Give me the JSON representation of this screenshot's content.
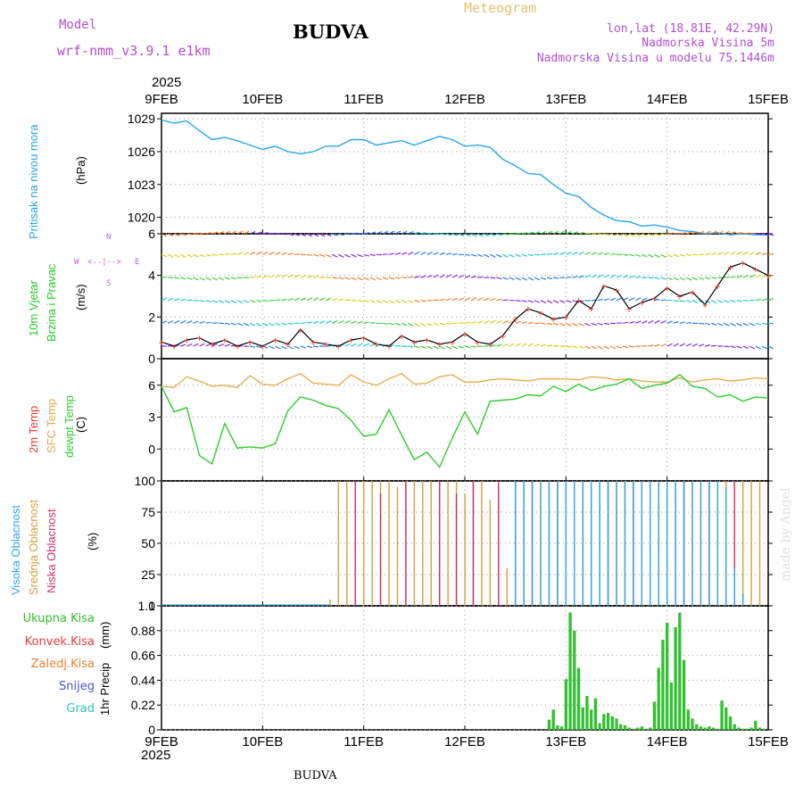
{
  "header": {
    "model_label": "Model",
    "model_name": "wrf-nmm_v3.9.1 e1km",
    "title": "BUDVA",
    "meteogram_label": "Meteogram",
    "lonlat": "lon,lat (18.81E, 42.29N)",
    "elevation": "Nadmorska Visina 5m",
    "model_elevation": "Nadmorska Visina u modelu 75.1446m",
    "footer": "BUDVA",
    "watermark": "made by Angel"
  },
  "colors": {
    "pressure": "#2aa7e8",
    "wind_axis_label": "#22cc22",
    "wind_series": "#e83a3a",
    "temp_2m": "#e83a3a",
    "temp_sfc": "#e8a84a",
    "dewpt": "#30cc30",
    "cloud_high": "#30a8e8",
    "cloud_mid": "#d4a040",
    "cloud_low": "#d03070",
    "precip_total": "#30c030",
    "precip_conv": "#e83a3a",
    "precip_frozen": "#f08030",
    "snow": "#5050e0",
    "graupel": "#30c0c0",
    "compass": "#c060e0"
  },
  "time_axis": {
    "year": "2025",
    "labels": [
      "9FEB",
      "10FEB",
      "11FEB",
      "12FEB",
      "13FEB",
      "14FEB",
      "15FEB"
    ]
  },
  "panels": {
    "pressure": {
      "axis_label_blue": "Pritisak na nivou mora",
      "unit": "(hPa)"
    },
    "wind": {
      "axis_label_1": "10m Vjetar",
      "axis_label_2": "Brzina i Pravac",
      "unit": "(m/s)",
      "compass": {
        "west": "W",
        "east": "E",
        "north": "N",
        "south": "S"
      }
    },
    "temp": {
      "label_2m": "2m Temp",
      "label_sfc": "SFC Temp",
      "label_dewpt": "dewpt Temp",
      "unit": "(C)"
    },
    "cloud": {
      "label_high": "Visoka Oblacnost",
      "label_mid": "Srednja Oblacnost",
      "label_low": "Niska Oblacnost",
      "unit": "(%)"
    },
    "precip": {
      "legend": [
        "Ukupna Kisa",
        "Konvek.Kisa",
        "Zaledj.Kisa",
        "Snijeg",
        "Grad"
      ],
      "axis_label": "1hr Precip",
      "unit": "(mm)"
    }
  },
  "chart_data": [
    {
      "type": "line",
      "title": "",
      "ylabel": "Pritisak na nivou mora (hPa)",
      "ylim": [
        1018.5,
        1029.5
      ],
      "yticks": [
        1020,
        1023,
        1026,
        1029
      ],
      "xlim": [
        "2025-02-09 00",
        "2025-02-15 00"
      ],
      "grid": true,
      "series": [
        {
          "name": "Pritisak na nivou mora",
          "x_hours": [
            0,
            3,
            6,
            9,
            12,
            15,
            18,
            21,
            24,
            27,
            30,
            33,
            36,
            39,
            42,
            45,
            48,
            51,
            54,
            57,
            60,
            63,
            66,
            69,
            72,
            75,
            78,
            81,
            84,
            87,
            90,
            93,
            96,
            99,
            102,
            105,
            108,
            111,
            114,
            117,
            120,
            123,
            126,
            129,
            132,
            135,
            138,
            141,
            144
          ],
          "values": [
            1028.9,
            1028.6,
            1028.8,
            1027.9,
            1027.1,
            1027.3,
            1027.0,
            1026.6,
            1026.2,
            1026.5,
            1026.0,
            1025.8,
            1026.0,
            1026.5,
            1026.5,
            1027.1,
            1027.1,
            1026.6,
            1026.8,
            1027.0,
            1026.6,
            1027.0,
            1027.4,
            1027.1,
            1026.5,
            1026.6,
            1026.4,
            1025.3,
            1024.7,
            1024.0,
            1023.9,
            1023.0,
            1022.2,
            1021.9,
            1020.9,
            1020.2,
            1019.7,
            1019.6,
            1019.2,
            1019.3,
            1019.1,
            1018.8,
            1018.7,
            1018.5,
            1018.6,
            1018.4,
            1018.5,
            1018.4,
            1018.4
          ]
        }
      ]
    },
    {
      "type": "line",
      "title": "",
      "ylabel": "10m Vjetar Brzina i Pravac (m/s)",
      "ylim": [
        0,
        6
      ],
      "yticks": [
        0,
        2,
        4,
        6
      ],
      "xlim": [
        "2025-02-09 00",
        "2025-02-15 00"
      ],
      "series": [
        {
          "name": "10m Vjetar Brzina",
          "x_hours": [
            0,
            3,
            6,
            9,
            12,
            15,
            18,
            21,
            24,
            27,
            30,
            33,
            36,
            39,
            42,
            45,
            48,
            51,
            54,
            57,
            60,
            63,
            66,
            69,
            72,
            75,
            78,
            81,
            84,
            87,
            90,
            93,
            96,
            99,
            102,
            105,
            108,
            111,
            114,
            117,
            120,
            123,
            126,
            129,
            132,
            135,
            138,
            141,
            144
          ],
          "values": [
            0.8,
            0.6,
            0.9,
            1.0,
            0.7,
            0.9,
            0.6,
            0.8,
            0.6,
            0.9,
            0.7,
            1.4,
            0.8,
            0.7,
            0.6,
            0.9,
            1.0,
            0.7,
            0.6,
            1.1,
            0.8,
            0.9,
            0.7,
            0.8,
            1.2,
            0.8,
            0.7,
            1.1,
            1.9,
            2.4,
            2.2,
            1.9,
            2.0,
            2.8,
            2.4,
            3.5,
            3.3,
            2.4,
            2.7,
            2.9,
            3.4,
            3.0,
            3.2,
            2.6,
            3.5,
            4.4,
            4.6,
            4.3,
            4.0
          ]
        }
      ]
    },
    {
      "type": "line",
      "title": "",
      "ylabel": "2m Temp / SFC Temp / dewpt Temp (C)",
      "ylim": [
        -3,
        8.5
      ],
      "yticks": [
        0,
        3,
        6
      ],
      "xlim": [
        "2025-02-09 00",
        "2025-02-15 00"
      ],
      "series": [
        {
          "name": "SFC Temp",
          "x_hours": [
            0,
            3,
            6,
            9,
            12,
            15,
            18,
            21,
            24,
            27,
            30,
            33,
            36,
            39,
            42,
            45,
            48,
            51,
            54,
            57,
            60,
            63,
            66,
            69,
            72,
            75,
            78,
            81,
            84,
            87,
            90,
            93,
            96,
            99,
            102,
            105,
            108,
            111,
            114,
            117,
            120,
            123,
            126,
            129,
            132,
            135,
            138,
            141,
            144
          ],
          "values": [
            5.9,
            5.8,
            6.8,
            6.4,
            5.9,
            6.0,
            5.8,
            6.9,
            6.1,
            6.0,
            6.6,
            7.1,
            6.2,
            6.1,
            6.0,
            7.0,
            6.3,
            6.0,
            6.6,
            7.1,
            6.1,
            6.2,
            6.8,
            7.0,
            6.3,
            6.3,
            6.5,
            6.6,
            6.5,
            6.4,
            6.6,
            6.6,
            6.6,
            6.5,
            6.8,
            6.7,
            6.5,
            6.6,
            6.4,
            6.3,
            6.3,
            6.7,
            6.3,
            6.5,
            6.6,
            6.4,
            6.5,
            6.7,
            6.6
          ]
        },
        {
          "name": "dewpt Temp",
          "x_hours": [
            0,
            3,
            6,
            9,
            12,
            15,
            18,
            21,
            24,
            27,
            30,
            33,
            36,
            39,
            42,
            45,
            48,
            51,
            54,
            57,
            60,
            63,
            66,
            69,
            72,
            75,
            78,
            81,
            84,
            87,
            90,
            93,
            96,
            99,
            102,
            105,
            108,
            111,
            114,
            117,
            120,
            123,
            126,
            129,
            132,
            135,
            138,
            141,
            144
          ],
          "values": [
            5.9,
            3.5,
            3.9,
            -0.6,
            -1.4,
            2.4,
            0.1,
            0.2,
            0.1,
            0.5,
            3.6,
            4.9,
            4.6,
            4.1,
            3.8,
            2.7,
            1.2,
            1.4,
            3.7,
            1.3,
            -1.0,
            -0.3,
            -1.7,
            1.0,
            3.5,
            1.4,
            4.5,
            4.6,
            4.7,
            5.1,
            5.0,
            5.9,
            5.4,
            6.1,
            5.5,
            5.9,
            6.1,
            6.6,
            5.7,
            6.0,
            6.2,
            7.0,
            5.9,
            5.7,
            4.9,
            5.1,
            4.5,
            4.9,
            4.8
          ]
        }
      ]
    },
    {
      "type": "bar",
      "title": "",
      "ylabel": "Visoka / Srednja / Niska Oblacnost (%)",
      "ylim": [
        0,
        100
      ],
      "yticks": [
        0,
        25,
        50,
        75,
        100
      ],
      "xlim": [
        "2025-02-09 00",
        "2025-02-15 00"
      ],
      "series": [
        {
          "name": "Srednja Oblacnost",
          "x_hours": [
            40,
            42,
            44,
            46,
            48,
            50,
            52,
            54,
            56,
            58,
            60,
            62,
            64,
            66,
            68,
            70,
            72,
            74,
            76,
            78,
            80,
            82,
            84,
            86,
            88,
            90,
            92,
            94,
            96,
            98,
            100,
            102,
            104,
            106,
            108,
            110,
            112,
            114,
            116,
            118,
            120,
            122,
            124,
            126,
            128,
            130,
            132,
            134,
            136,
            138,
            140,
            142
          ],
          "values": [
            5,
            100,
            100,
            100,
            100,
            100,
            100,
            100,
            95,
            100,
            100,
            100,
            100,
            100,
            100,
            100,
            90,
            100,
            100,
            85,
            100,
            30,
            100,
            100,
            100,
            100,
            100,
            100,
            100,
            100,
            100,
            100,
            100,
            100,
            100,
            100,
            100,
            100,
            100,
            100,
            100,
            100,
            100,
            100,
            100,
            100,
            100,
            100,
            100,
            100,
            100,
            100
          ]
        },
        {
          "name": "Niska Oblacnost",
          "x_hours": [
            46,
            52,
            58,
            66,
            70,
            74,
            80,
            84,
            88,
            94,
            100,
            106,
            112,
            118,
            124,
            130,
            136
          ],
          "values": [
            100,
            90,
            100,
            100,
            90,
            100,
            100,
            100,
            100,
            100,
            100,
            100,
            100,
            100,
            100,
            100,
            100
          ]
        },
        {
          "name": "Visoka Oblacnost",
          "x_hours": [
            84,
            86,
            88,
            90,
            92,
            94,
            96,
            98,
            100,
            102,
            104,
            106,
            108,
            110,
            112,
            114,
            116,
            118,
            120,
            122,
            124,
            126,
            128,
            130,
            132,
            134,
            136,
            138
          ],
          "values": [
            100,
            100,
            100,
            100,
            100,
            100,
            100,
            100,
            100,
            100,
            100,
            100,
            100,
            100,
            100,
            100,
            100,
            100,
            100,
            100,
            100,
            100,
            100,
            100,
            100,
            95,
            30,
            10
          ]
        }
      ]
    },
    {
      "type": "bar",
      "title": "",
      "ylabel": "1hr Precip (mm)",
      "ylim": [
        0,
        1.1
      ],
      "yticks": [
        0,
        0.22,
        0.44,
        0.66,
        0.88,
        1.1
      ],
      "xlim": [
        "2025-02-09 00",
        "2025-02-15 00"
      ],
      "series": [
        {
          "name": "Ukupna Kisa",
          "x_hours": [
            92,
            93,
            94,
            95,
            96,
            97,
            98,
            99,
            100,
            101,
            102,
            103,
            104,
            105,
            106,
            107,
            108,
            109,
            110,
            111,
            112,
            113,
            114,
            115,
            116,
            117,
            118,
            119,
            120,
            121,
            122,
            123,
            124,
            125,
            126,
            127,
            128,
            129,
            130,
            131,
            132,
            133,
            134,
            135,
            136,
            137,
            138,
            139,
            140,
            141,
            142,
            143,
            144
          ],
          "values": [
            0.09,
            0.18,
            0.04,
            0.03,
            0.45,
            1.04,
            0.88,
            0.55,
            0.2,
            0.3,
            0.18,
            0.28,
            0.06,
            0.14,
            0.15,
            0.12,
            0.1,
            0.05,
            0.04,
            0.02,
            0.01,
            0.02,
            0.03,
            0.01,
            0.02,
            0.25,
            0.55,
            0.8,
            0.95,
            0.42,
            0.91,
            1.04,
            0.62,
            0.18,
            0.1,
            0.05,
            0.03,
            0.02,
            0.03,
            0.02,
            0.01,
            0.26,
            0.2,
            0.12,
            0.05,
            0.02,
            0.01,
            0.01,
            0.02,
            0.08,
            0.02,
            0.01,
            0.0
          ]
        }
      ]
    }
  ]
}
